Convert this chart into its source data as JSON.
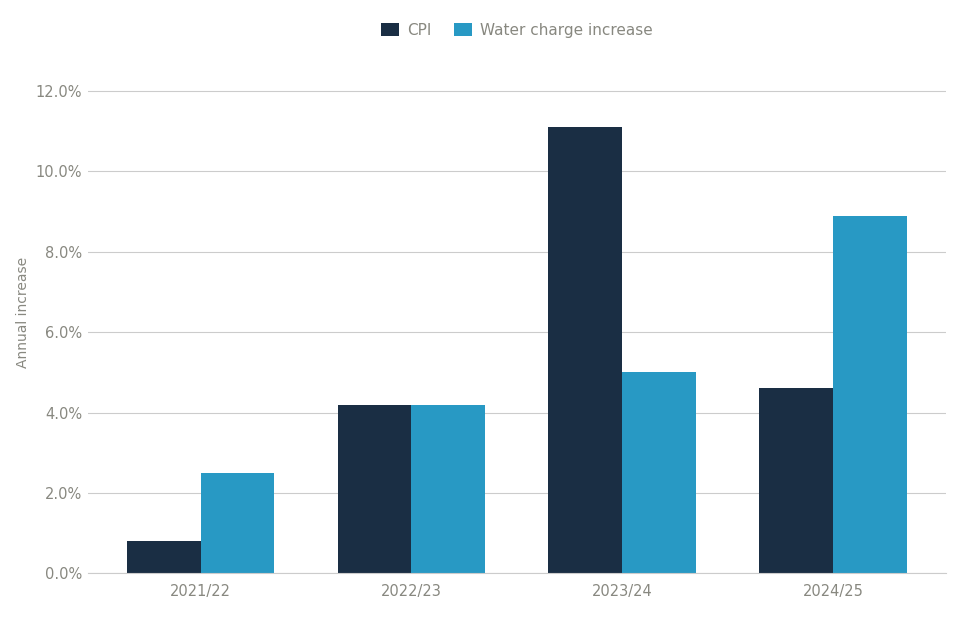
{
  "categories": [
    "2021/22",
    "2022/23",
    "2023/24",
    "2024/25"
  ],
  "cpi_values": [
    0.008,
    0.042,
    0.111,
    0.046
  ],
  "water_values": [
    0.025,
    0.042,
    0.05,
    0.089
  ],
  "cpi_color": "#1a2e44",
  "water_color": "#2899c4",
  "ylabel": "Annual increase",
  "ylim": [
    0,
    0.13
  ],
  "yticks": [
    0.0,
    0.02,
    0.04,
    0.06,
    0.08,
    0.1,
    0.12
  ],
  "legend_labels": [
    "CPI",
    "Water charge increase"
  ],
  "bar_width": 0.35,
  "background_color": "#ffffff",
  "grid_color": "#cccccc",
  "text_color": "#888880",
  "legend_fontsize": 11,
  "axis_fontsize": 10,
  "tick_fontsize": 10.5
}
